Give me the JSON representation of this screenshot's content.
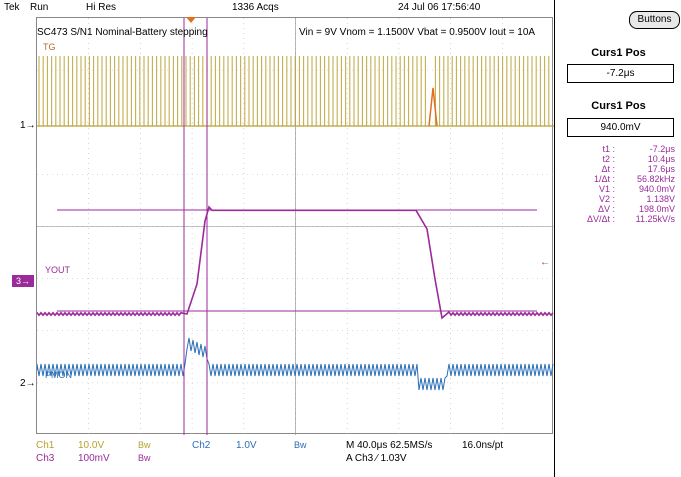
{
  "header": {
    "brand": "Tek",
    "run_state": "Run",
    "acq_mode": "Hi Res",
    "acqs": "1336 Acqs",
    "datetime": "24 Jul 06 17:56:40"
  },
  "screen": {
    "title": "SC473 S/N1 Nominal-Battery stepping",
    "conditions": "Vin = 9V Vnom = 1.1500V Vbat = 0.9500V  Iout = 10A",
    "ch1_label": "TG",
    "ch3_label": "YOUT",
    "ch2_label": "PMON"
  },
  "markers": {
    "ch1": "1",
    "ch3": "3",
    "ch2": "2"
  },
  "side": {
    "buttons_label": "Buttons",
    "curs1_pos_title_a": "Curs1 Pos",
    "curs1_pos_value_a": "-7.2μs",
    "curs1_pos_title_b": "Curs1 Pos",
    "curs1_pos_value_b": "940.0mV",
    "measurements": [
      {
        "k": "t1 :",
        "v": "-7.2μs"
      },
      {
        "k": "t2 :",
        "v": "10.4μs"
      },
      {
        "k": "Δt :",
        "v": "17.6μs"
      },
      {
        "k": "1/Δt :",
        "v": "56.82kHz"
      },
      {
        "k": "V1 :",
        "v": "940.0mV"
      },
      {
        "k": "V2 :",
        "v": "1.138V"
      },
      {
        "k": "ΔV :",
        "v": "198.0mV"
      },
      {
        "k": "ΔV/Δt :",
        "v": "11.25kV/s"
      }
    ]
  },
  "status": {
    "ch1_name": "Ch1",
    "ch1_scale": "10.0V",
    "ch1_bw": "Bw",
    "ch2_name": "Ch2",
    "ch2_scale": "1.0V",
    "ch2_bw": "Bw",
    "ch3_name": "Ch3",
    "ch3_scale": "100mV",
    "ch3_bw": "Bw",
    "timebase": "M 40.0μs 62.5MS/s",
    "resolution": "16.0ns/pt",
    "trigger": "A  Ch3  ∕  1.03V"
  },
  "colors": {
    "ch1": "#b8a030",
    "ch2": "#2a6fb5",
    "ch3": "#9b2a9b",
    "trigger_marker": "#e07020",
    "grid": "#999999"
  }
}
